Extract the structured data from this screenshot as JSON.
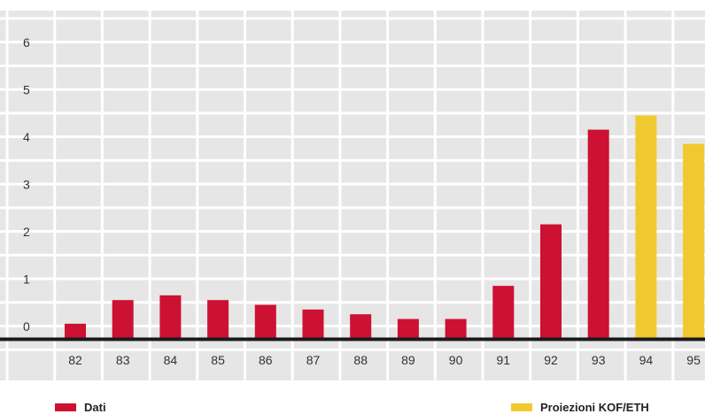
{
  "chart_data": {
    "type": "bar",
    "categories": [
      "82",
      "83",
      "84",
      "85",
      "86",
      "87",
      "88",
      "89",
      "90",
      "91",
      "92",
      "93",
      "94",
      "95"
    ],
    "series": [
      {
        "name": "Dati",
        "color": "#cc1133",
        "values": [
          0.3,
          0.8,
          0.9,
          0.8,
          0.7,
          0.6,
          0.5,
          0.4,
          0.4,
          1.1,
          2.4,
          4.4,
          null,
          null
        ]
      },
      {
        "name": "Proiezioni KOF/ETH",
        "color": "#f0c930",
        "values": [
          null,
          null,
          null,
          null,
          null,
          null,
          null,
          null,
          null,
          null,
          null,
          null,
          4.7,
          4.1
        ]
      }
    ],
    "yticks": [
      "0",
      "1",
      "2",
      "3",
      "4",
      "5",
      "6"
    ],
    "ylim": [
      -0.25,
      6.75
    ],
    "grid": true,
    "legend": "bottom",
    "background_color": "#e6e6e6",
    "grid_color": "#ffffff",
    "baseline_color": "#1a1a1a"
  }
}
